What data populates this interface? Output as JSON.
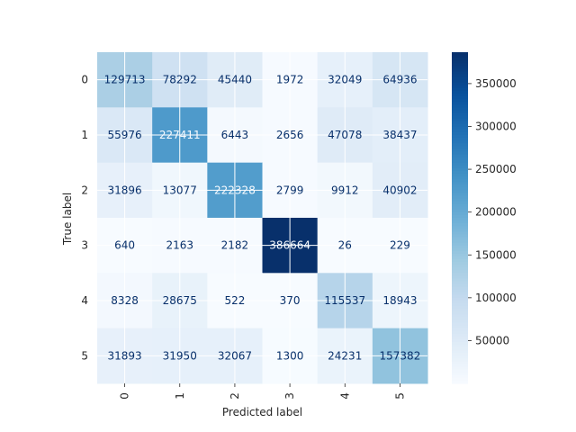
{
  "chart_data": {
    "type": "heatmap",
    "xlabel": "Predicted label",
    "ylabel": "True label",
    "x_categories": [
      "0",
      "1",
      "2",
      "3",
      "4",
      "5"
    ],
    "y_categories": [
      "0",
      "1",
      "2",
      "3",
      "4",
      "5"
    ],
    "values": [
      [
        129713,
        78292,
        45440,
        1972,
        32049,
        64936
      ],
      [
        55976,
        227411,
        6443,
        2656,
        47078,
        38437
      ],
      [
        31896,
        13077,
        222328,
        2799,
        9912,
        40902
      ],
      [
        640,
        2163,
        2182,
        386664,
        26,
        229
      ],
      [
        8328,
        28675,
        522,
        370,
        115537,
        18943
      ],
      [
        31893,
        31950,
        32067,
        1300,
        24231,
        157382
      ]
    ],
    "colormap": "Blues",
    "colorbar": {
      "ticks": [
        50000,
        100000,
        150000,
        200000,
        250000,
        300000,
        350000
      ],
      "range": [
        26,
        386664
      ]
    },
    "grid": true
  }
}
